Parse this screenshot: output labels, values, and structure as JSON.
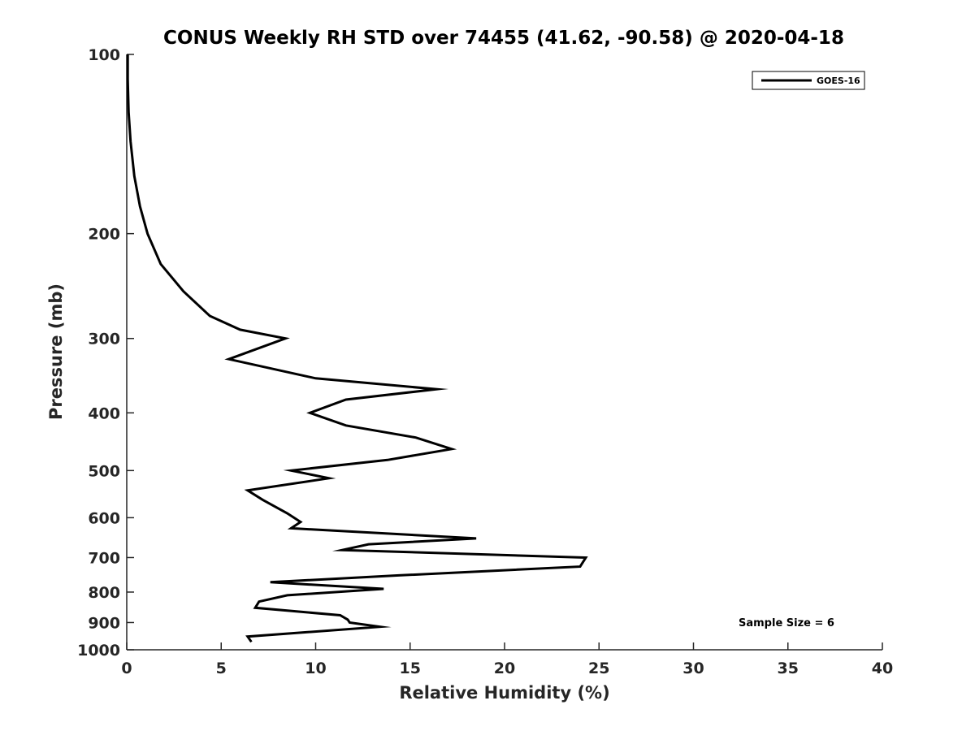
{
  "chart_data": {
    "type": "line",
    "title": "CONUS Weekly RH STD over 74455 (41.62, -90.58) @ 2020-04-18",
    "xlabel": "Relative Humidity (%)",
    "ylabel": "Pressure (mb)",
    "xlim": [
      0,
      40
    ],
    "ylim": [
      100,
      1000
    ],
    "yscale": "log",
    "y_reversed": true,
    "x_ticks": [
      "0",
      "5",
      "10",
      "15",
      "20",
      "25",
      "30",
      "35",
      "40"
    ],
    "y_ticks": [
      "100",
      "200",
      "300",
      "400",
      "500",
      "600",
      "700",
      "800",
      "900",
      "1000"
    ],
    "grid": false,
    "legend_placement": "top-right",
    "annotation": "Sample Size = 6",
    "line_color": "#000000",
    "series": [
      {
        "name": "GOES-16",
        "x": [
          0.05,
          0.05,
          0.1,
          0.2,
          0.4,
          0.7,
          1.1,
          1.8,
          3.0,
          4.4,
          6.0,
          8.4,
          5.4,
          10.0,
          16.4,
          11.6,
          9.7,
          11.6,
          15.3,
          17.2,
          13.8,
          8.7,
          10.7,
          6.4,
          7.2,
          8.5,
          9.2,
          8.7,
          18.5,
          12.8,
          11.4,
          24.3,
          24.0,
          14.4,
          7.6,
          13.6,
          8.5,
          7.0,
          6.8,
          11.3,
          11.7,
          11.8,
          13.4,
          6.4,
          6.6
        ],
        "y": [
          100,
          110,
          125,
          140,
          160,
          180,
          200,
          225,
          250,
          275,
          290,
          300,
          325,
          350,
          365,
          380,
          400,
          420,
          440,
          460,
          480,
          500,
          515,
          540,
          560,
          590,
          610,
          625,
          650,
          665,
          680,
          700,
          725,
          750,
          770,
          790,
          810,
          830,
          850,
          875,
          890,
          900,
          915,
          950,
          970
        ]
      }
    ]
  }
}
